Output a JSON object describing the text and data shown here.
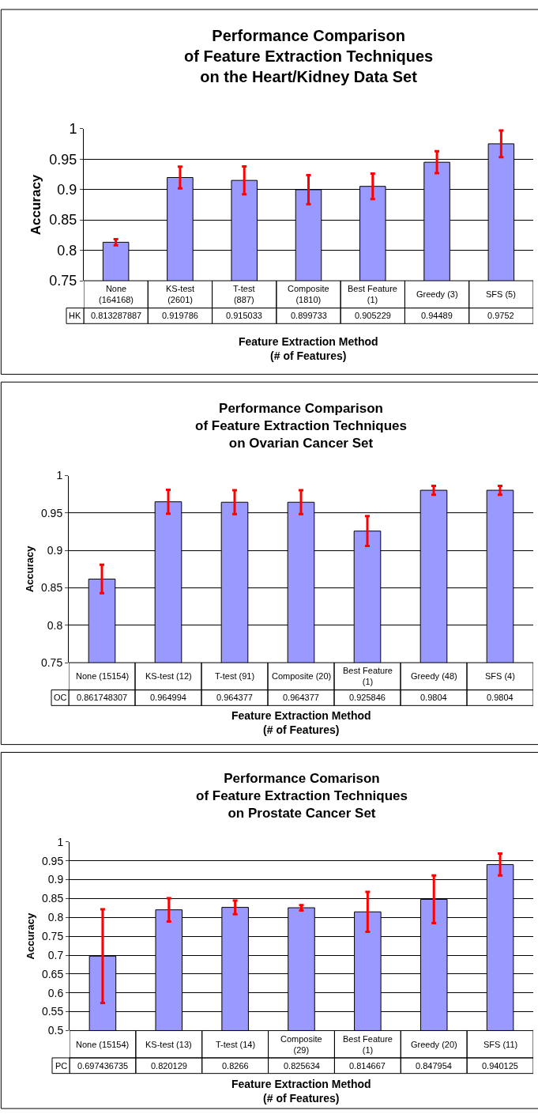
{
  "chart_data": [
    {
      "type": "bar",
      "title": "Performance Comparison\nof Feature Extraction Techniques\non the Heart/Kidney Data Set",
      "xlabel": "Feature Extraction Method\n(# of Features)",
      "ylabel": "Accuracy",
      "categories": [
        "None\n(164168)",
        "KS-test\n(2601)",
        "T-test\n(887)",
        "Composite\n(1810)",
        "Best Feature\n(1)",
        "Greedy (3)",
        "SFS (5)"
      ],
      "series": [
        {
          "name": "HK",
          "color": "#9999ff",
          "values": [
            0.813287887,
            0.919786,
            0.915033,
            0.899733,
            0.905229,
            0.94489,
            0.9752
          ],
          "errors": [
            0.005,
            0.018,
            0.023,
            0.024,
            0.021,
            0.018,
            0.022
          ]
        }
      ],
      "ylim": [
        0.75,
        1
      ],
      "yticks": [
        0.75,
        0.8,
        0.85,
        0.9,
        0.95,
        1
      ],
      "grid": "y",
      "data_labels": true
    },
    {
      "type": "bar",
      "title": "Performance Comparison\nof Feature Extraction Techniques\non Ovarian Cancer Set",
      "xlabel": "Feature Extraction Method\n(# of Features)",
      "ylabel": "Accuracy",
      "categories": [
        "None (15154)",
        "KS-test (12)",
        "T-test (91)",
        "Composite (20)",
        "Best Feature\n(1)",
        "Greedy (48)",
        "SFS (4)"
      ],
      "series": [
        {
          "name": "OC",
          "color": "#9999ff",
          "values": [
            0.861748307,
            0.964994,
            0.964377,
            0.964377,
            0.925846,
            0.9804,
            0.9804
          ],
          "errors": [
            0.019,
            0.016,
            0.016,
            0.016,
            0.02,
            0.006,
            0.006
          ]
        }
      ],
      "ylim": [
        0.75,
        1
      ],
      "yticks": [
        0.75,
        0.8,
        0.85,
        0.9,
        0.95,
        1
      ],
      "grid": "y",
      "data_labels": true
    },
    {
      "type": "bar",
      "title": "Performance Comarison\nof Feature Extraction Techniques\non Prostate Cancer Set",
      "xlabel": "Feature Extraction Method\n(# of Features)",
      "ylabel": "Accuracy",
      "categories": [
        "None (15154)",
        "KS-test (13)",
        "T-test (14)",
        "Composite\n(29)",
        "Best Feature\n(1)",
        "Greedy (20)",
        "SFS (11)"
      ],
      "series": [
        {
          "name": "PC",
          "color": "#9999ff",
          "values": [
            0.697436735,
            0.820129,
            0.8266,
            0.825634,
            0.814667,
            0.847954,
            0.940125
          ],
          "errors": [
            0.124,
            0.031,
            0.018,
            0.007,
            0.053,
            0.063,
            0.029
          ]
        }
      ],
      "ylim": [
        0.5,
        1
      ],
      "yticks": [
        0.5,
        0.55,
        0.6,
        0.65,
        0.7,
        0.75,
        0.8,
        0.85,
        0.9,
        0.95,
        1
      ],
      "grid": "y",
      "data_labels": true
    }
  ]
}
